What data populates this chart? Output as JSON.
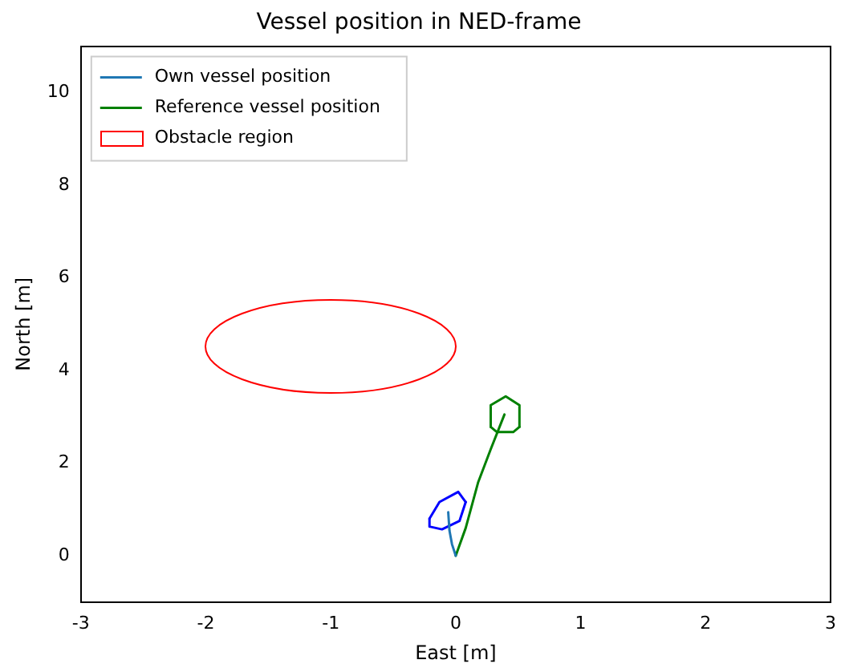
{
  "chart_data": {
    "type": "line",
    "title": "Vessel position in NED-frame",
    "xlabel": "East [m]",
    "ylabel": "North [m]",
    "xlim": [
      -3,
      3
    ],
    "xticks": [
      -3,
      -2,
      -1,
      0,
      1,
      2,
      3
    ],
    "ylim": [
      -1,
      11
    ],
    "yticks": [
      0,
      2,
      4,
      6,
      8,
      10
    ],
    "grid": false,
    "legend": "top left",
    "marker": "none",
    "line_style": "solid",
    "annotations": [
      "Obstacle region"
    ],
    "series": [
      {
        "name": "Own vessel position",
        "color": "#1f77b4",
        "x": [
          0,
          -0.03,
          -0.05,
          -0.06
        ],
        "values": [
          0,
          0.25,
          0.54,
          0.94
        ]
      },
      {
        "name": "Reference vessel position",
        "color": "#008000",
        "x": [
          0,
          0.08,
          0.18,
          0.28,
          0.39
        ],
        "values": [
          0,
          0.6,
          1.59,
          2.3,
          3.05
        ]
      },
      {
        "color": "#0000ff",
        "x": [
          -0.21,
          -0.13,
          0.02,
          0.08
        ],
        "values": [
          0.8,
          1.16,
          1.38,
          1.16
        ]
      },
      {
        "color": "#0000ff",
        "x": [
          -0.21,
          -0.21,
          -0.11,
          0.03,
          0.08
        ],
        "values": [
          0.8,
          0.63,
          0.57,
          0.75,
          1.16
        ]
      },
      {
        "color": "#008000",
        "x": [
          0.28,
          0.28,
          0.4,
          0.51,
          0.51
        ],
        "values": [
          2.78,
          3.25,
          3.44,
          3.25,
          2.78
        ]
      },
      {
        "color": "#008000",
        "x": [
          0.28,
          0.33,
          0.46,
          0.51
        ],
        "values": [
          2.78,
          2.67,
          2.67,
          2.78
        ]
      }
    ]
  }
}
